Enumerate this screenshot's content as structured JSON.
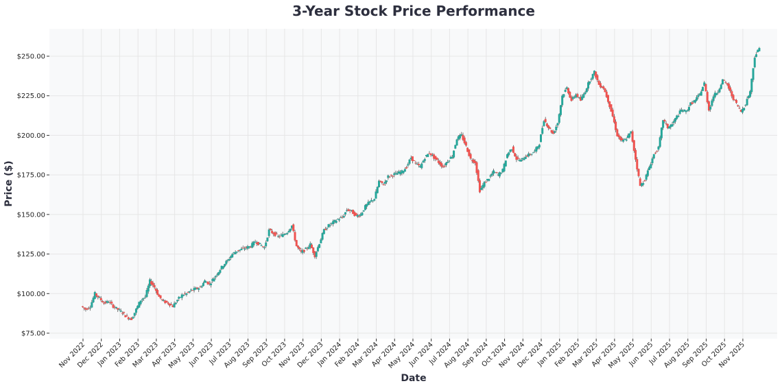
{
  "chart_data": {
    "type": "candlestick",
    "title": "3-Year Stock Price Performance",
    "xlabel": "Date",
    "ylabel": "Price ($)",
    "ylim": [
      74,
      260
    ],
    "grid": true,
    "colors": {
      "up": "#26a69a",
      "down": "#ef5350",
      "background": "#f8f9fa",
      "grid": "#e6e6e6"
    },
    "y_ticks": [
      "$75.00",
      "$100.00",
      "$125.00",
      "$150.00",
      "$175.00",
      "$200.00",
      "$225.00",
      "$250.00"
    ],
    "y_tick_values": [
      75,
      100,
      125,
      150,
      175,
      200,
      225,
      250
    ],
    "x_ticks": [
      "Nov 2022",
      "Dec 2022",
      "Jan 2023",
      "Feb 2023",
      "Mar 2023",
      "Apr 2023",
      "May 2023",
      "Jun 2023",
      "Jul 2023",
      "Aug 2023",
      "Sep 2023",
      "Oct 2023",
      "Nov 2023",
      "Dec 2023",
      "Jan 2024",
      "Feb 2024",
      "Mar 2024",
      "Apr 2024",
      "May 2024",
      "Jun 2024",
      "Jul 2024",
      "Aug 2024",
      "Sep 2024",
      "Oct 2024",
      "Nov 2024",
      "Dec 2024",
      "Jan 2025",
      "Feb 2025",
      "Mar 2025",
      "Apr 2025",
      "May 2025",
      "Jun 2025",
      "Jul 2025",
      "Aug 2025",
      "Sep 2025",
      "Oct 2025",
      "Nov 2025"
    ],
    "approx_weekly_closes_by_month": [
      {
        "month": "2022-11",
        "closes": [
          90,
          92,
          100,
          97
        ]
      },
      {
        "month": "2022-12",
        "closes": [
          94,
          95,
          92,
          90
        ]
      },
      {
        "month": "2023-01",
        "closes": [
          88,
          85,
          84,
          90
        ]
      },
      {
        "month": "2023-02",
        "closes": [
          96,
          98,
          108,
          104
        ]
      },
      {
        "month": "2023-03",
        "closes": [
          98,
          95,
          94,
          92
        ]
      },
      {
        "month": "2023-04",
        "closes": [
          96,
          99,
          100,
          102
        ]
      },
      {
        "month": "2023-05",
        "closes": [
          103,
          104,
          108,
          106
        ]
      },
      {
        "month": "2023-06",
        "closes": [
          110,
          114,
          118,
          121
        ]
      },
      {
        "month": "2023-07",
        "closes": [
          125,
          127,
          128,
          129
        ]
      },
      {
        "month": "2023-08",
        "closes": [
          130,
          133,
          131,
          129
        ]
      },
      {
        "month": "2023-09",
        "closes": [
          140,
          138,
          136,
          137
        ]
      },
      {
        "month": "2023-10",
        "closes": [
          139,
          143,
          130,
          126
        ]
      },
      {
        "month": "2023-11",
        "closes": [
          128,
          131,
          124,
          132
        ]
      },
      {
        "month": "2023-12",
        "closes": [
          140,
          143,
          145,
          147
        ]
      },
      {
        "month": "2024-01",
        "closes": [
          148,
          153,
          152,
          149
        ]
      },
      {
        "month": "2024-02",
        "closes": [
          150,
          155,
          158,
          160
        ]
      },
      {
        "month": "2024-03",
        "closes": [
          171,
          169,
          174,
          175
        ]
      },
      {
        "month": "2024-04",
        "closes": [
          176,
          177,
          180,
          186
        ]
      },
      {
        "month": "2024-05",
        "closes": [
          182,
          180,
          186,
          189
        ]
      },
      {
        "month": "2024-06",
        "closes": [
          186,
          183,
          180,
          184
        ]
      },
      {
        "month": "2024-07",
        "closes": [
          187,
          198,
          200,
          193
        ]
      },
      {
        "month": "2024-08",
        "closes": [
          185,
          183,
          165,
          170
        ]
      },
      {
        "month": "2024-09",
        "closes": [
          173,
          177,
          175,
          178
        ]
      },
      {
        "month": "2024-10",
        "closes": [
          188,
          192,
          185,
          184
        ]
      },
      {
        "month": "2024-11",
        "closes": [
          187,
          188,
          190,
          195
        ]
      },
      {
        "month": "2024-12",
        "closes": [
          210,
          205,
          201,
          208
        ]
      },
      {
        "month": "2025-01",
        "closes": [
          225,
          230,
          222,
          226
        ]
      },
      {
        "month": "2025-02",
        "closes": [
          222,
          228,
          235,
          240
        ]
      },
      {
        "month": "2025-03",
        "closes": [
          232,
          230,
          222,
          212
        ]
      },
      {
        "month": "2025-04",
        "closes": [
          200,
          196,
          198,
          202
        ]
      },
      {
        "month": "2025-05",
        "closes": [
          185,
          168,
          172,
          180
        ]
      },
      {
        "month": "2025-06",
        "closes": [
          188,
          192,
          210,
          205
        ]
      },
      {
        "month": "2025-07",
        "closes": [
          207,
          212,
          216,
          215
        ]
      },
      {
        "month": "2025-08",
        "closes": [
          220,
          222,
          226,
          233
        ]
      },
      {
        "month": "2025-09",
        "closes": [
          216,
          225,
          228,
          235
        ]
      },
      {
        "month": "2025-10",
        "closes": [
          232,
          225,
          220,
          215
        ]
      },
      {
        "month": "2025-11",
        "closes": [
          220,
          228,
          250,
          255
        ]
      }
    ]
  }
}
